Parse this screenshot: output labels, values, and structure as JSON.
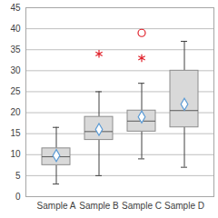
{
  "chart_data": {
    "type": "box",
    "categories": [
      "Sample A",
      "Sample B",
      "Sample C",
      "Sample D"
    ],
    "whisker_low": [
      3,
      5,
      9,
      7
    ],
    "q1": [
      7.5,
      13.5,
      15.5,
      16.5
    ],
    "median": [
      9.5,
      15.5,
      18,
      20.5
    ],
    "q3": [
      11.5,
      19,
      20.5,
      30
    ],
    "whisker_high": [
      16.5,
      25,
      27,
      37
    ],
    "color": "#d9d9d9",
    "mean": {
      "values": [
        9.8,
        16,
        19,
        22
      ],
      "marker": "diamond",
      "color": "#5b9bd5"
    },
    "outliers": [
      {
        "category": "Sample B",
        "value": 34,
        "marker": "asterisk",
        "color": "#e0202a"
      },
      {
        "category": "Sample C",
        "value": 33,
        "marker": "asterisk",
        "color": "#e0202a"
      },
      {
        "category": "Sample C",
        "value": 39,
        "marker": "circle",
        "color": "#e0202a"
      }
    ],
    "ylim": [
      0,
      45
    ],
    "yticks": [
      0,
      5,
      10,
      15,
      20,
      25,
      30,
      35,
      40,
      45
    ],
    "grid": true
  }
}
